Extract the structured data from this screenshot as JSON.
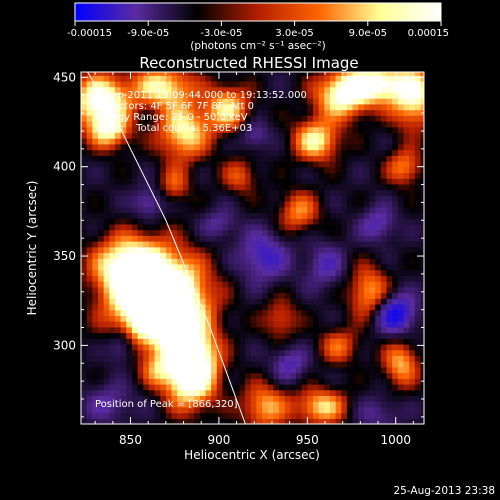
{
  "chart_data": {
    "type": "heatmap",
    "title": "Reconstructed RHESSI Image",
    "xlabel": "Heliocentric X (arcsec)",
    "ylabel": "Heliocentric Y (arcsec)",
    "xlim": [
      822,
      1016
    ],
    "ylim": [
      256,
      453
    ],
    "x_ticks": [
      "850",
      "900",
      "950",
      "1000"
    ],
    "y_ticks": [
      "300",
      "350",
      "400",
      "450"
    ],
    "colorbar": {
      "range": [
        -0.00015,
        0.00015
      ],
      "tick_labels": [
        "-0.00015",
        "-9.0e-05",
        "-3.0e-05",
        "3.0e-05",
        "9.0e-05",
        "0.00015"
      ],
      "label": "(photons cm⁻² s⁻¹ asec⁻²)",
      "colors": [
        "#0000ff",
        "#5a2ba0",
        "#000000",
        "#b41e00",
        "#ff6400",
        "#ffff96",
        "#ffffff"
      ]
    },
    "annotations": [
      "5-Sep-2011 19:09:44.000 to 19:13:52.000",
      "Detectors: 4F 5F 6F 7F 8F, Att 0",
      "Energy Range: 25.0 - 50.0 keV",
      "Clean    Total counts: 5.36E+03",
      "Position of Peak = [866,320]"
    ],
    "peak": [
      866,
      320
    ],
    "limb_curve": {
      "x": [
        824,
        845,
        870,
        895,
        915
      ],
      "y": [
        456,
        420,
        370,
        310,
        256
      ]
    },
    "sources": [
      {
        "x": 866,
        "y": 325,
        "sx": 17,
        "sy": 17,
        "amp": 2.1
      },
      {
        "x": 884,
        "y": 288,
        "sx": 10,
        "sy": 14,
        "amp": 1.7
      },
      {
        "x": 848,
        "y": 345,
        "sx": 13,
        "sy": 11,
        "amp": 1.0
      },
      {
        "x": 833,
        "y": 437,
        "sx": 11,
        "sy": 10,
        "amp": 1.2
      },
      {
        "x": 838,
        "y": 420,
        "sx": 8,
        "sy": 7,
        "amp": 0.8
      },
      {
        "x": 868,
        "y": 445,
        "sx": 12,
        "sy": 8,
        "amp": 0.9
      },
      {
        "x": 880,
        "y": 420,
        "sx": 10,
        "sy": 11,
        "amp": 0.9
      },
      {
        "x": 905,
        "y": 433,
        "sx": 9,
        "sy": 9,
        "amp": 0.8
      },
      {
        "x": 955,
        "y": 415,
        "sx": 9,
        "sy": 8,
        "amp": 0.9
      },
      {
        "x": 970,
        "y": 440,
        "sx": 11,
        "sy": 9,
        "amp": 1.0
      },
      {
        "x": 988,
        "y": 447,
        "sx": 12,
        "sy": 7,
        "amp": 1.1
      },
      {
        "x": 1010,
        "y": 440,
        "sx": 9,
        "sy": 12,
        "amp": 1.0
      },
      {
        "x": 1005,
        "y": 400,
        "sx": 7,
        "sy": 7,
        "amp": 0.6
      },
      {
        "x": 945,
        "y": 375,
        "sx": 8,
        "sy": 8,
        "amp": 0.6
      },
      {
        "x": 985,
        "y": 330,
        "sx": 8,
        "sy": 10,
        "amp": 0.7
      },
      {
        "x": 1003,
        "y": 290,
        "sx": 7,
        "sy": 9,
        "amp": 0.7
      },
      {
        "x": 968,
        "y": 300,
        "sx": 8,
        "sy": 7,
        "amp": 0.5
      },
      {
        "x": 935,
        "y": 315,
        "sx": 7,
        "sy": 8,
        "amp": 0.45
      },
      {
        "x": 926,
        "y": 266,
        "sx": 9,
        "sy": 9,
        "amp": 0.7
      },
      {
        "x": 958,
        "y": 266,
        "sx": 10,
        "sy": 7,
        "amp": 0.8
      },
      {
        "x": 875,
        "y": 390,
        "sx": 6,
        "sy": 7,
        "amp": 0.45
      },
      {
        "x": 912,
        "y": 395,
        "sx": 7,
        "sy": 7,
        "amp": 0.45
      },
      {
        "x": 865,
        "y": 286,
        "sx": 6,
        "sy": 6,
        "amp": 0.4
      },
      {
        "x": 845,
        "y": 300,
        "sx": 6,
        "sy": 7,
        "amp": -0.55
      },
      {
        "x": 860,
        "y": 380,
        "sx": 6,
        "sy": 6,
        "amp": -0.45
      },
      {
        "x": 900,
        "y": 368,
        "sx": 7,
        "sy": 6,
        "amp": -0.35
      },
      {
        "x": 925,
        "y": 350,
        "sx": 10,
        "sy": 10,
        "amp": -0.55
      },
      {
        "x": 960,
        "y": 345,
        "sx": 8,
        "sy": 9,
        "amp": -0.4
      },
      {
        "x": 990,
        "y": 368,
        "sx": 7,
        "sy": 7,
        "amp": -0.45
      },
      {
        "x": 1000,
        "y": 318,
        "sx": 8,
        "sy": 8,
        "amp": -0.8
      },
      {
        "x": 940,
        "y": 290,
        "sx": 7,
        "sy": 7,
        "amp": -0.45
      },
      {
        "x": 838,
        "y": 268,
        "sx": 10,
        "sy": 8,
        "amp": -0.35
      },
      {
        "x": 990,
        "y": 262,
        "sx": 9,
        "sy": 7,
        "amp": -0.3
      },
      {
        "x": 920,
        "y": 418,
        "sx": 6,
        "sy": 6,
        "amp": -0.4
      }
    ]
  },
  "footer": {
    "timestamp": "25-Aug-2013 23:38"
  }
}
